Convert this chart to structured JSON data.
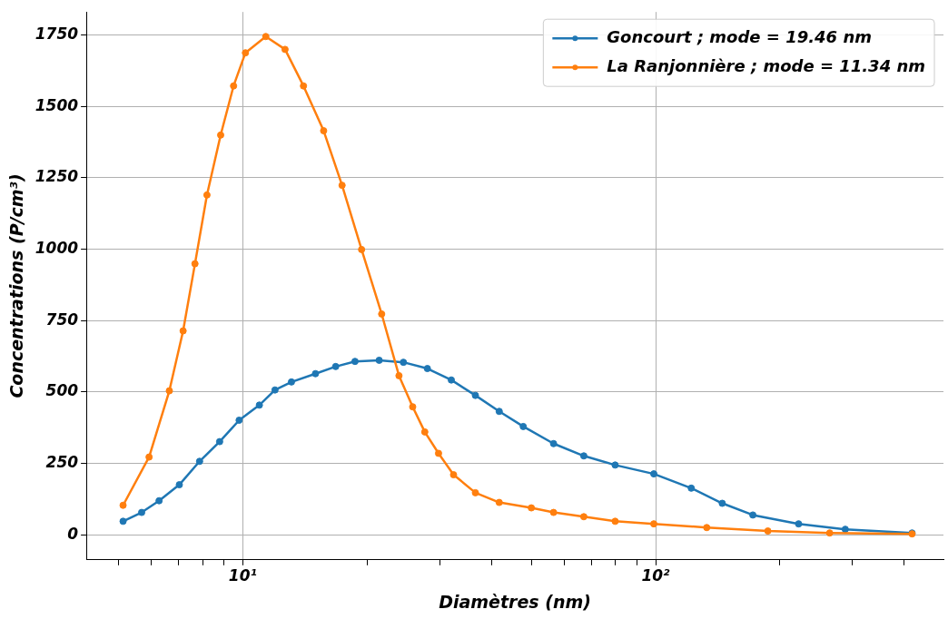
{
  "chart_data": {
    "type": "line",
    "xlabel": "Diamètres (nm)",
    "ylabel": "Concentrations (P/cm³)",
    "log": "x",
    "grid": true,
    "legend": "top right",
    "marker": "circle",
    "line_style": "solid",
    "xlim": [
      4.18,
      498
    ],
    "xticks": [
      {
        "value": 5,
        "label": null
      },
      {
        "value": 6,
        "label": null
      },
      {
        "value": 7,
        "label": null
      },
      {
        "value": 8,
        "label": null
      },
      {
        "value": 9,
        "label": null
      },
      {
        "value": 10,
        "label": "10¹"
      },
      {
        "value": 20,
        "label": null
      },
      {
        "value": 30,
        "label": null
      },
      {
        "value": 40,
        "label": null
      },
      {
        "value": 50,
        "label": null
      },
      {
        "value": 60,
        "label": null
      },
      {
        "value": 70,
        "label": null
      },
      {
        "value": 80,
        "label": null
      },
      {
        "value": 90,
        "label": null
      },
      {
        "value": 100,
        "label": "10²"
      },
      {
        "value": 200,
        "label": null
      },
      {
        "value": 300,
        "label": null
      },
      {
        "value": 400,
        "label": null
      }
    ],
    "ylim": [
      -88,
      1831
    ],
    "yticks": [
      0,
      250,
      500,
      750,
      1000,
      1250,
      1500,
      1750
    ],
    "series": [
      {
        "name": "Goncourt ; mode = 19.46 nm",
        "color": "#1f77b4",
        "x": [
          5.13,
          5.69,
          6.27,
          7.02,
          7.86,
          8.79,
          9.8,
          10.97,
          11.97,
          13.12,
          15.0,
          16.79,
          18.7,
          21.4,
          24.5,
          28.0,
          32.0,
          36.6,
          41.8,
          47.8,
          56.6,
          67,
          79.8,
          99,
          122,
          145,
          172,
          222,
          288,
          418
        ],
        "values": [
          47,
          78,
          119,
          175,
          257,
          326,
          401,
          454,
          507,
          535,
          564,
          589,
          607,
          611,
          604,
          582,
          542,
          488,
          432,
          379,
          319,
          276,
          244,
          213,
          163,
          110,
          69,
          38,
          19,
          6
        ]
      },
      {
        "name": "La Ranjonnière ; mode = 11.34 nm",
        "color": "#ff7f0e",
        "x": [
          5.13,
          5.93,
          6.64,
          7.17,
          7.66,
          8.19,
          8.84,
          9.5,
          10.15,
          11.37,
          12.66,
          14.03,
          15.7,
          17.4,
          19.4,
          21.7,
          23.9,
          25.8,
          27.6,
          29.8,
          32.4,
          36.6,
          41.8,
          50.0,
          56.6,
          67,
          79.8,
          99,
          133,
          187,
          264,
          418
        ],
        "values": [
          103,
          272,
          504,
          714,
          949,
          1190,
          1400,
          1572,
          1688,
          1745,
          1700,
          1572,
          1415,
          1224,
          999,
          773,
          557,
          448,
          360,
          285,
          210,
          147,
          113,
          94,
          78,
          63,
          47,
          38,
          25,
          13,
          6,
          3
        ]
      }
    ]
  }
}
